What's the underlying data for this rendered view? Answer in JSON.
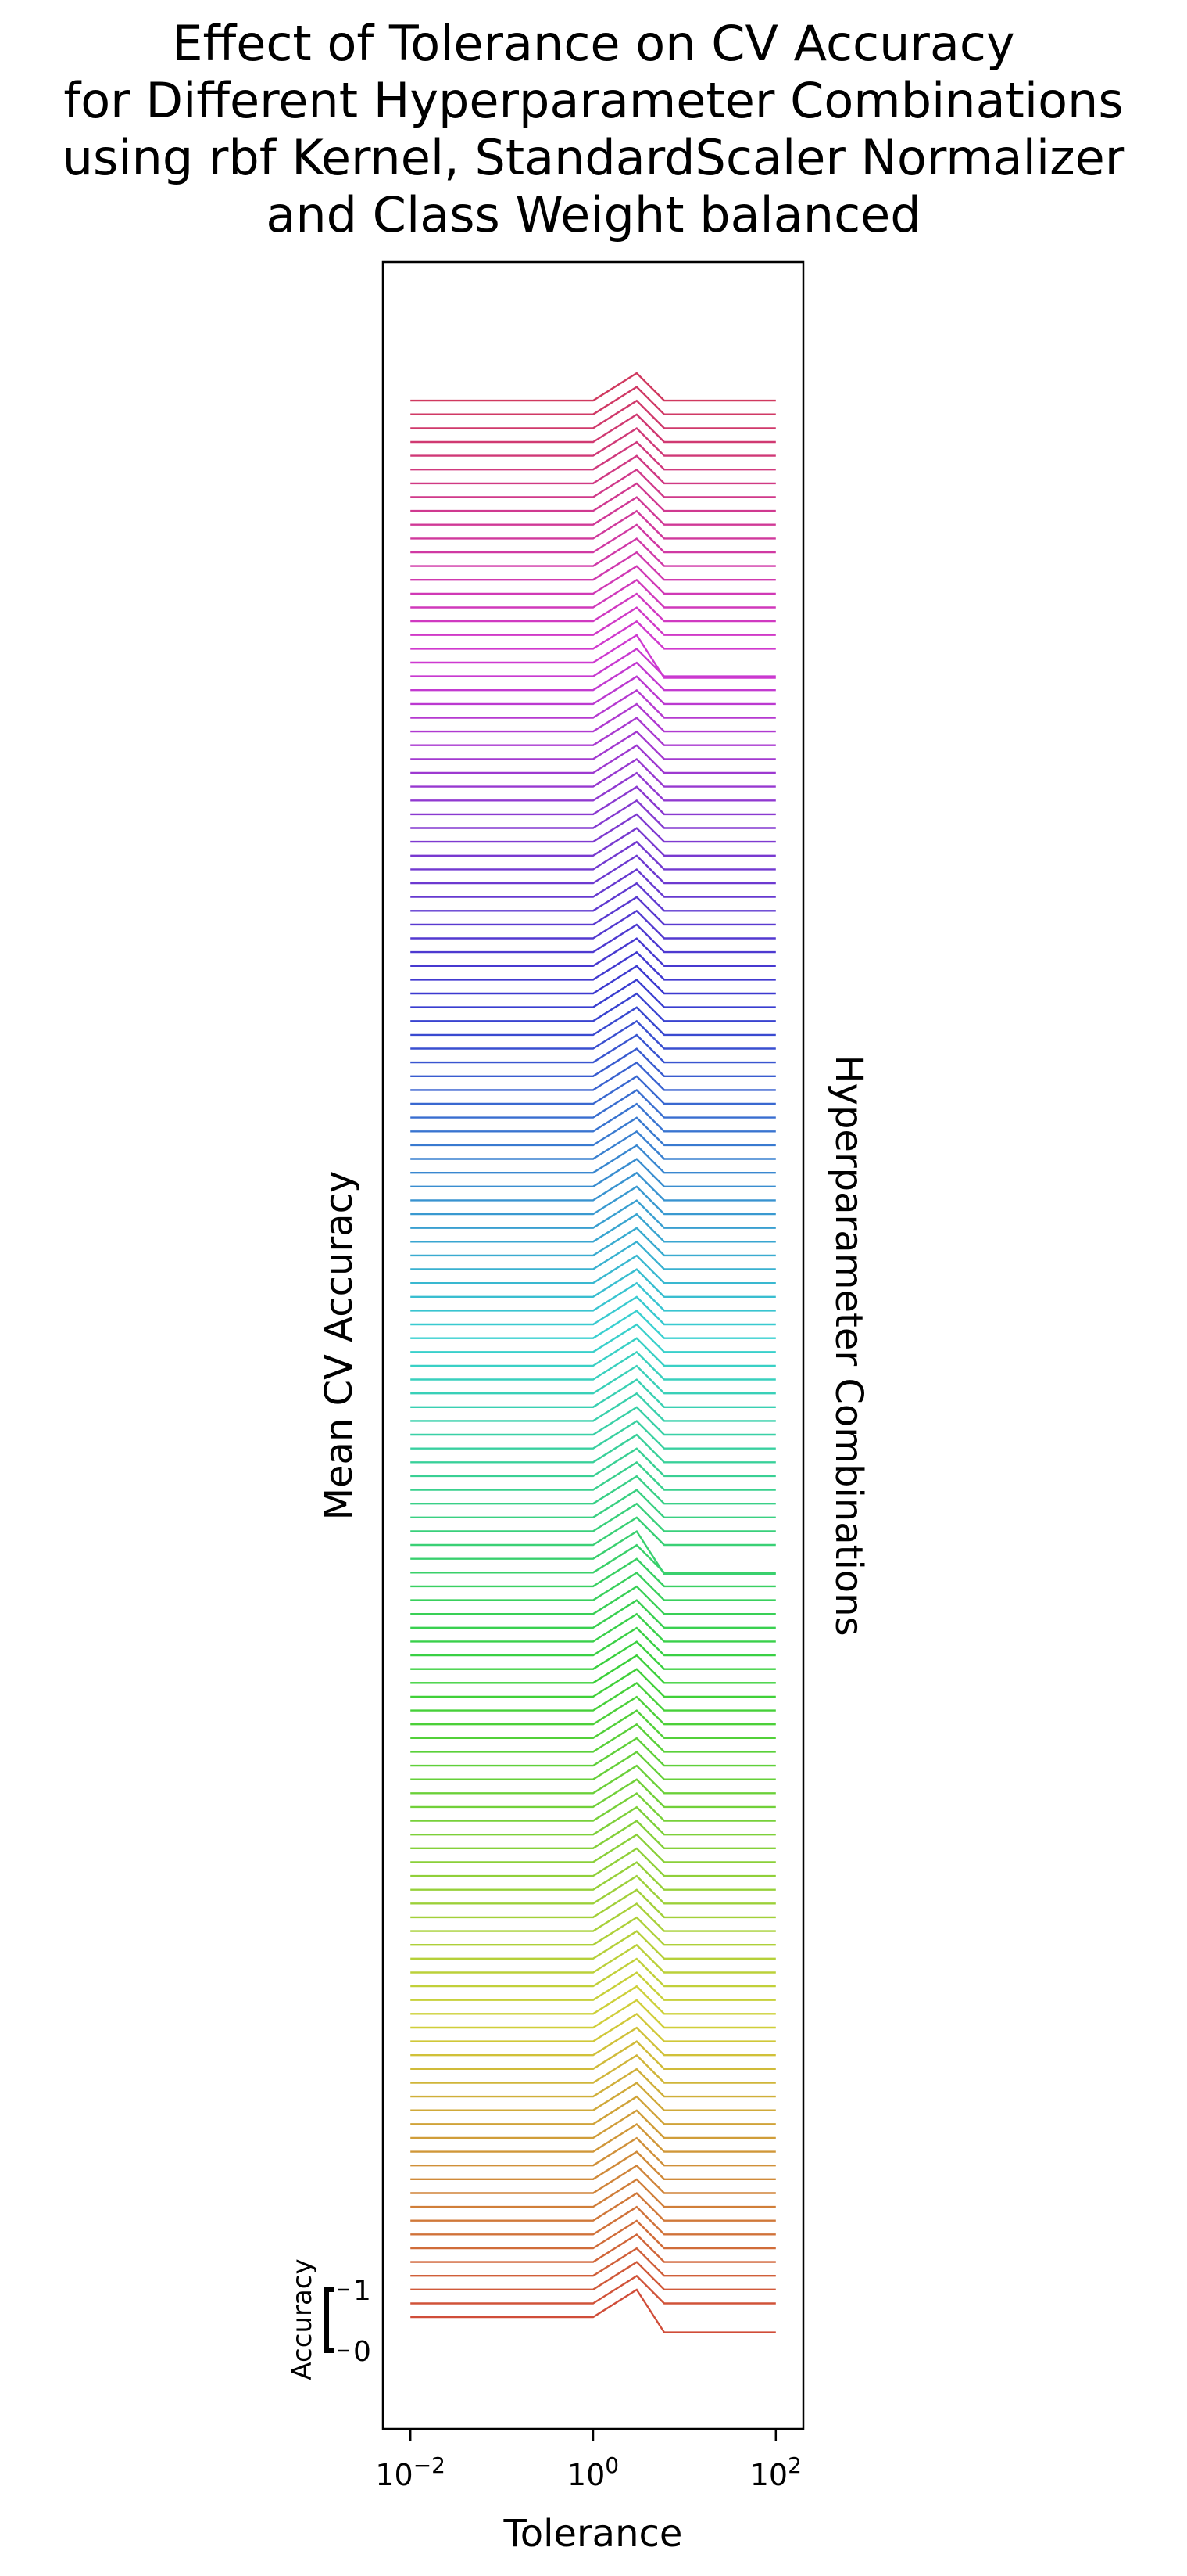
{
  "chart_data": {
    "type": "line",
    "title_lines": [
      "Effect of Tolerance on CV Accuracy",
      "for Different Hyperparameter Combinations",
      "using rbf Kernel, StandardScaler Normalizer",
      "and Class Weight balanced"
    ],
    "xlabel": "Tolerance",
    "ylabel": "Mean CV Accuracy",
    "right_label": "Hyperparameter Combinations",
    "x_scale": "log",
    "xlim": [
      0.005,
      200
    ],
    "x_ticks": [
      {
        "value": 0.01,
        "base": "10",
        "exp": "−2"
      },
      {
        "value": 1,
        "base": "10",
        "exp": "0"
      },
      {
        "value": 100,
        "base": "10",
        "exp": "2"
      }
    ],
    "x": [
      0.01,
      1,
      3,
      6,
      100
    ],
    "scale_bar": {
      "label": "Accuracy",
      "ticks": [
        "0",
        "1"
      ]
    },
    "num_series": 140,
    "series_pattern": {
      "baseline_accuracy": 0.55,
      "accuracy_at_peak_tolerance": 1.0,
      "peak_tolerance": 3,
      "note_low_accuracy_series": [
        0,
        55,
        120
      ]
    },
    "grid": false,
    "legend": "none",
    "palette": "husl"
  }
}
